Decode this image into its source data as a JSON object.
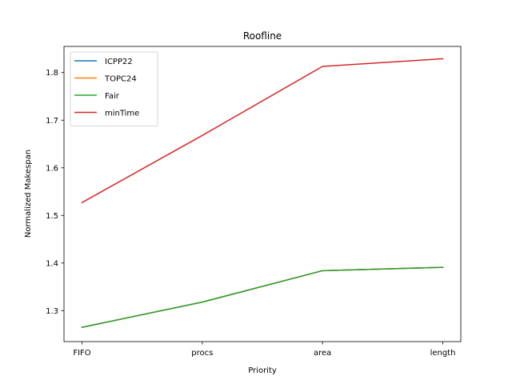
{
  "chart_data": {
    "type": "line",
    "title": "Roofline",
    "xlabel": "Priority",
    "ylabel": "Normalized Makespan",
    "categories": [
      "FIFO",
      "procs",
      "area",
      "length"
    ],
    "ylim": [
      1.235,
      1.855
    ],
    "yticks": [
      1.3,
      1.4,
      1.5,
      1.6,
      1.7,
      1.8
    ],
    "ytick_labels": [
      "1.3",
      "1.4",
      "1.5",
      "1.6",
      "1.7",
      "1.8"
    ],
    "grid": false,
    "legend_position": "top-left",
    "series": [
      {
        "name": "ICPP22",
        "color": "#1f77b4",
        "values": [
          1.265,
          1.318,
          1.384,
          1.391
        ]
      },
      {
        "name": "TOPC24",
        "color": "#ff7f0e",
        "values": [
          1.265,
          1.318,
          1.384,
          1.391
        ]
      },
      {
        "name": "Fair",
        "color": "#2ca02c",
        "values": [
          1.265,
          1.318,
          1.384,
          1.391
        ]
      },
      {
        "name": "minTime",
        "color": "#d62728",
        "values": [
          1.527,
          1.668,
          1.813,
          1.829
        ]
      }
    ]
  }
}
